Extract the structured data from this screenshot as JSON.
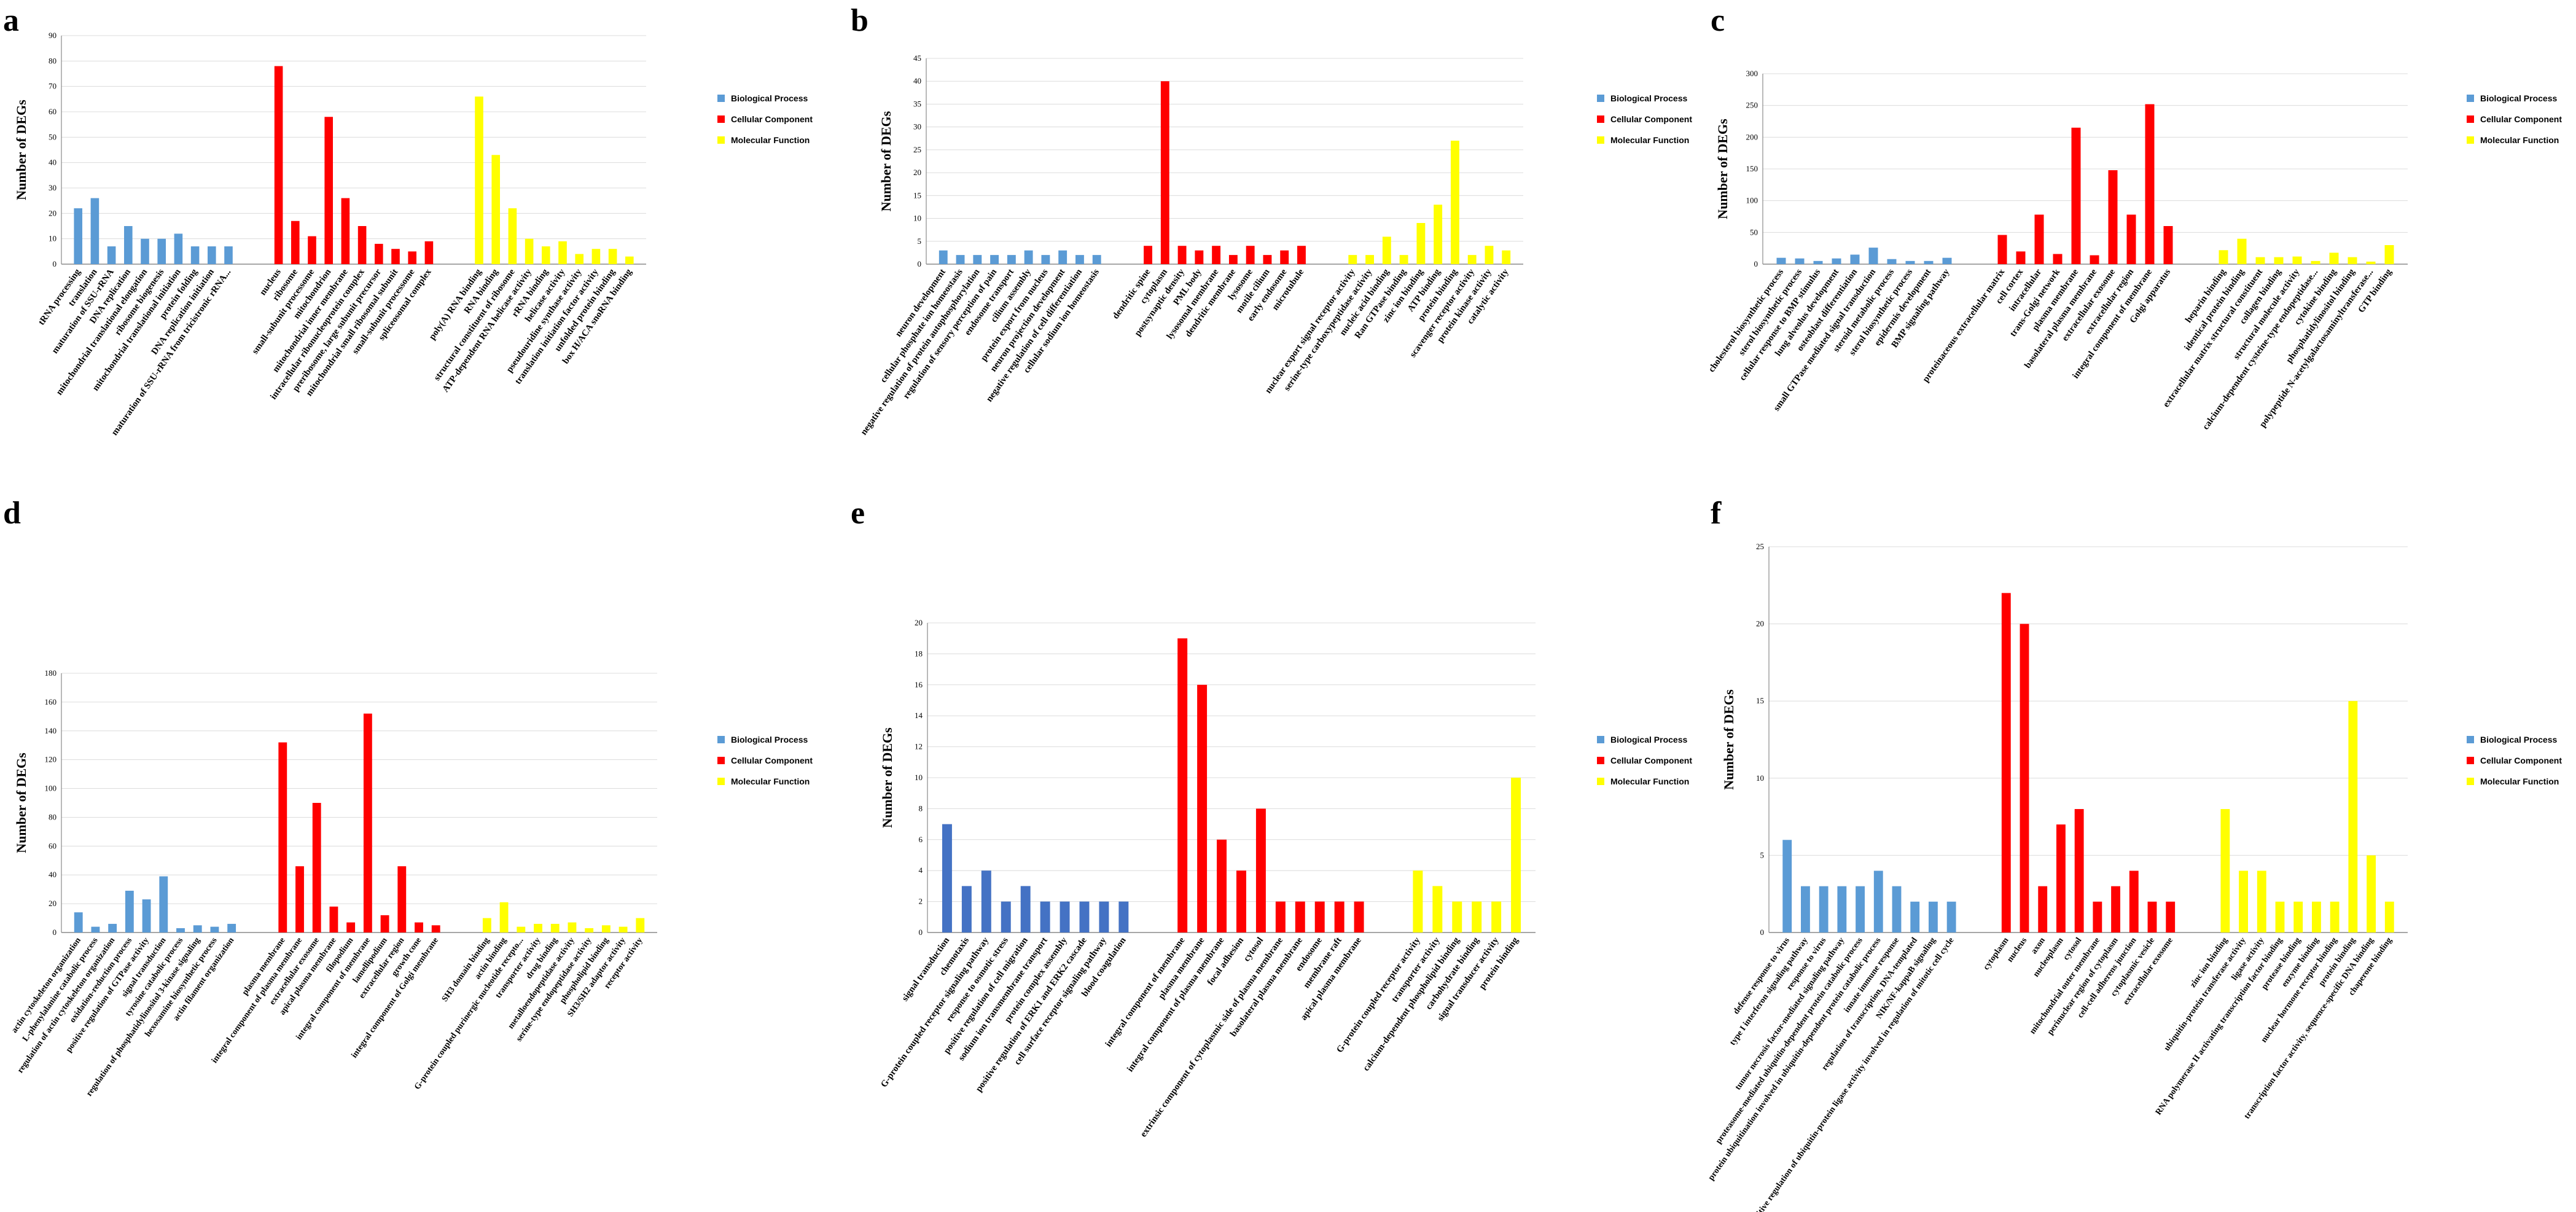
{
  "colors": {
    "bp": "#5b9bd5",
    "cc": "#ff0000",
    "mf": "#ffff00",
    "bp_dark": "#4472c4"
  },
  "chart_data": [
    {
      "type": "bar",
      "panel": "a",
      "ylabel": "Number of DEGs",
      "ylim": [
        0,
        90
      ],
      "ystep": 10,
      "grid": true,
      "legend_position": "right",
      "legend": [
        "Biological Process",
        "Cellular Component",
        "Molecular Function"
      ],
      "groups": [
        {
          "name": "Biological Process",
          "categories": [
            "tRNA processing",
            "translation",
            "maturation of SSU-rRNA",
            "DNA replication",
            "mitochondrial translational elongation",
            "ribosome biogenesis",
            "mitochondrial translational initiation",
            "protein folding",
            "DNA replication initiation",
            "maturation of SSU-rRNA from tricistronic rRNA..."
          ],
          "values": [
            22,
            26,
            7,
            15,
            10,
            10,
            12,
            7,
            7,
            7
          ]
        },
        {
          "name": "Cellular Component",
          "categories": [
            "nucleus",
            "ribosome",
            "small-subunit processome",
            "mitochondrion",
            "mitochondrial inner membrane",
            "intracellular ribonucleoprotein complex",
            "preribosome, large subunit precursor",
            "mitochondrial small ribosomal subunit",
            "small-subunit processome",
            "spliceosomal complex"
          ],
          "values": [
            78,
            17,
            11,
            58,
            26,
            15,
            8,
            6,
            5,
            9
          ]
        },
        {
          "name": "Molecular Function",
          "categories": [
            "poly(A) RNA binding",
            "RNA binding",
            "structural constituent of ribosome",
            "ATP-dependent RNA helicase activity",
            "rRNA binding",
            "helicase activity",
            "pseudouridine synthase activity",
            "translation initiation factor activity",
            "unfolded protein binding",
            "box H/ACA snoRNA binding"
          ],
          "values": [
            66,
            43,
            22,
            10,
            7,
            9,
            4,
            6,
            6,
            3
          ]
        }
      ]
    },
    {
      "type": "bar",
      "panel": "b",
      "ylabel": "Number of DEGs",
      "ylim": [
        0,
        45
      ],
      "ystep": 5,
      "grid": true,
      "legend_position": "right",
      "legend": [
        "Biological Process",
        "Cellular Component",
        "Molecular Function"
      ],
      "groups": [
        {
          "name": "Biological Process",
          "categories": [
            "neuron development",
            "cellular phosphate ion homeostasis",
            "negative regulation of protein autophosphorylation",
            "regulation of sensory perception of pain",
            "endosome transport",
            "cilium assembly",
            "protein export from nucleus",
            "neuron projection development",
            "negative regulation of cell differentiation",
            "cellular sodium ion homeostasis"
          ],
          "values": [
            3,
            2,
            2,
            2,
            2,
            3,
            2,
            3,
            2,
            2
          ]
        },
        {
          "name": "Cellular Component",
          "categories": [
            "dendritic spine",
            "cytoplasm",
            "postsynaptic density",
            "PML body",
            "lysosomal membrane",
            "dendritic membrane",
            "lysosome",
            "motile cilium",
            "early endosome",
            "microtubule"
          ],
          "values": [
            4,
            40,
            4,
            3,
            4,
            2,
            4,
            2,
            3,
            4
          ]
        },
        {
          "name": "Molecular Function",
          "categories": [
            "nuclear export signal receptor activity",
            "serine-type carboxypeptidase activity",
            "nucleic acid binding",
            "Ran GTPase binding",
            "zinc ion binding",
            "ATP binding",
            "protein binding",
            "scavenger receptor activity",
            "protein kinase activity",
            "catalytic activity"
          ],
          "values": [
            2,
            2,
            6,
            2,
            9,
            13,
            27,
            2,
            4,
            3
          ]
        }
      ]
    },
    {
      "type": "bar",
      "panel": "c",
      "ylabel": "Number of DEGs",
      "ylim": [
        0,
        300
      ],
      "ystep": 50,
      "grid": true,
      "legend_position": "right",
      "legend": [
        "Biological Process",
        "Cellular Component",
        "Molecular Function"
      ],
      "groups": [
        {
          "name": "Biological Process",
          "categories": [
            "cholesterol biosynthetic process",
            "sterol biosynthetic process",
            "cellular response to BMP stimulus",
            "lung alveolus development",
            "osteoblast differentiation",
            "small GTPase mediated signal transduction",
            "steroid metabolic process",
            "sterol biosynthetic process",
            "epidermis development",
            "BMP signaling pathway"
          ],
          "values": [
            10,
            9,
            5,
            9,
            15,
            26,
            8,
            5,
            5,
            10
          ]
        },
        {
          "name": "Cellular Component",
          "categories": [
            "proteinaceous extracellular matrix",
            "cell cortex",
            "intracellular",
            "trans-Golgi network",
            "plasma membrane",
            "basolateral plasma membrane",
            "extracellular exosome",
            "extracellular region",
            "integral component of membrane",
            "Golgi apparatus"
          ],
          "values": [
            46,
            20,
            78,
            16,
            215,
            14,
            148,
            78,
            252,
            60
          ]
        },
        {
          "name": "Molecular Function",
          "categories": [
            "heparin binding",
            "identical protein binding",
            "extracellular matrix structural constituent",
            "collagen binding",
            "structural molecule activity",
            "calcium-dependent cysteine-type endopeptidase...",
            "cytokine binding",
            "phosphatidylinositol binding",
            "polypeptide N-acetylgalactosaminyltransferase...",
            "GTP binding"
          ],
          "values": [
            22,
            40,
            11,
            11,
            12,
            5,
            18,
            11,
            4,
            30
          ]
        }
      ]
    },
    {
      "type": "bar",
      "panel": "d",
      "ylabel": "Number of DEGs",
      "ylim": [
        0,
        180
      ],
      "ystep": 20,
      "grid": true,
      "legend_position": "right",
      "legend": [
        "Biological Process",
        "Cellular Component",
        "Molecular Function"
      ],
      "groups": [
        {
          "name": "Biological Process",
          "categories": [
            "actin cytoskeleton organization",
            "L-phenylalanine catabolic process",
            "regulation of actin cytoskeleton organization",
            "oxidation-reduction process",
            "positive regulation of GTPase activity",
            "signal transduction",
            "tyrosine catabolic process",
            "regulation of phosphatidylinositol 3-kinase signaling",
            "hexosamine biosynthetic process",
            "actin filament organization"
          ],
          "values": [
            14,
            4,
            6,
            29,
            23,
            39,
            3,
            5,
            4,
            6
          ]
        },
        {
          "name": "Cellular Component",
          "categories": [
            "plasma membrane",
            "integral component of plasma membrane",
            "extracellular exosome",
            "apical plasma membrane",
            "filopodium",
            "integral component of membrane",
            "lamellipodium",
            "extracellular region",
            "growth cone",
            "integral component of Golgi membrane"
          ],
          "values": [
            132,
            46,
            90,
            18,
            7,
            152,
            12,
            46,
            7,
            5
          ]
        },
        {
          "name": "Molecular Function",
          "categories": [
            "SH3 domain binding",
            "actin binding",
            "G-protein coupled purinergic nucleotide recepto...",
            "transporter activity",
            "drug binding",
            "metalloendopeptidase activity",
            "serine-type endopeptidase activity",
            "phospholipid binding",
            "SH3/SH2 adaptor activity",
            "receptor activity"
          ],
          "values": [
            10,
            21,
            4,
            6,
            6,
            7,
            3,
            5,
            4,
            10
          ]
        }
      ]
    },
    {
      "type": "bar",
      "panel": "e",
      "ylabel": "Number of DEGs",
      "ylim": [
        0,
        20
      ],
      "ystep": 2,
      "grid": true,
      "legend_position": "right",
      "legend": [
        "Biological Process",
        "Cellular Component",
        "Molecular Function"
      ],
      "groups": [
        {
          "name": "Biological Process",
          "categories": [
            "signal transduction",
            "chemotaxis",
            "G-protein coupled receptor signaling pathway",
            "response to osmotic stress",
            "positive regulation of cell migration",
            "sodium ion transmembrane transport",
            "protein complex assembly",
            "positive regulation of ERK1 and ERK2 cascade",
            "cell surface receptor signaling pathway",
            "blood coagulation"
          ],
          "values": [
            7,
            3,
            4,
            2,
            3,
            2,
            2,
            2,
            2,
            2
          ]
        },
        {
          "name": "Cellular Component",
          "categories": [
            "integral component of membrane",
            "plasma membrane",
            "integral component of plasma membrane",
            "focal adhesion",
            "cytosol",
            "extrinsic component of cytoplasmic side of plasma membrane",
            "basolateral plasma membrane",
            "endosome",
            "membrane raft",
            "apical plasma membrane"
          ],
          "values": [
            19,
            16,
            6,
            4,
            8,
            2,
            2,
            2,
            2,
            2
          ]
        },
        {
          "name": "Molecular Function",
          "categories": [
            "G-protein coupled receptor activity",
            "transporter activity",
            "calcium-dependent phospholipid binding",
            "carbohydrate binding",
            "signal transducer activity",
            "protein binding"
          ],
          "values": [
            4,
            3,
            2,
            2,
            2,
            10
          ]
        }
      ]
    },
    {
      "type": "bar",
      "panel": "f",
      "ylabel": "Number of DEGs",
      "ylim": [
        0,
        25
      ],
      "ystep": 5,
      "grid": true,
      "legend_position": "right",
      "legend": [
        "Biological Process",
        "Cellular Component",
        "Molecular Function"
      ],
      "groups": [
        {
          "name": "Biological Process",
          "categories": [
            "defense response to virus",
            "type I interferon signaling pathway",
            "response to virus",
            "tumor necrosis factor-mediated signaling pathway",
            "proteasome-mediated ubiquitin-dependent protein catabolic process",
            "protein ubiquitination involved in ubiquitin-dependent protein catabolic process",
            "innate immune response",
            "regulation of transcription, DNA-templated",
            "NIK/NF-kappaB signaling",
            "positive regulation of ubiquitin-protein ligase activity involved in regulation of mitotic cell cycle"
          ],
          "values": [
            6,
            3,
            3,
            3,
            3,
            4,
            3,
            2,
            2,
            2
          ]
        },
        {
          "name": "Cellular Component",
          "categories": [
            "cytoplasm",
            "nucleus",
            "axon",
            "nucleoplasm",
            "cytosol",
            "mitochondrial outer membrane",
            "perinuclear region of cytoplasm",
            "cell-cell adherens junction",
            "cytoplasmic vesicle",
            "extracellular exosome"
          ],
          "values": [
            22,
            20,
            3,
            7,
            8,
            2,
            3,
            4,
            2,
            2
          ]
        },
        {
          "name": "Molecular Function",
          "categories": [
            "zinc ion binding",
            "ubiquitin-protein transferase activity",
            "ligase activity",
            "RNA polymerase II activating transcription factor binding",
            "protease binding",
            "enzyme binding",
            "nuclear hormone receptor binding",
            "protein binding",
            "transcription factor activity, sequence-specific DNA binding",
            "chaperone binding"
          ],
          "values": [
            8,
            4,
            4,
            2,
            2,
            2,
            2,
            15,
            5,
            2
          ]
        }
      ]
    }
  ]
}
